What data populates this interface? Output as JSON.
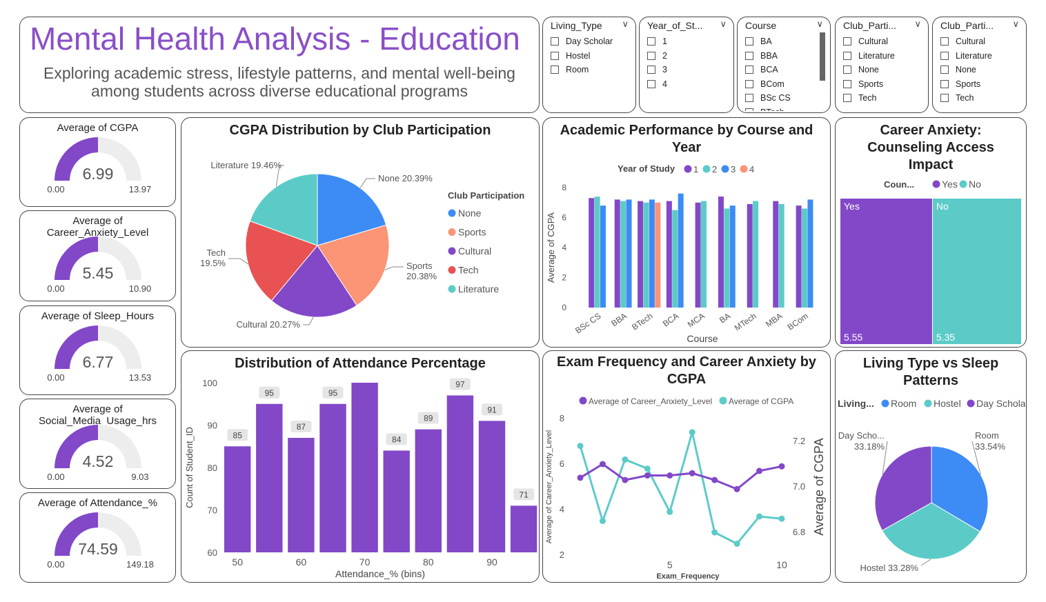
{
  "header": {
    "title": "Mental Health Analysis - Education",
    "subtitle_line1": "Exploring academic stress, lifestyle patterns, and mental well-being",
    "subtitle_line2": "among students across diverse educational programs"
  },
  "slicers": [
    {
      "label": "Living_Type",
      "items": [
        "Day Scholar",
        "Hostel",
        "Room"
      ]
    },
    {
      "label": "Year_of_St...",
      "items": [
        "1",
        "2",
        "3",
        "4"
      ]
    },
    {
      "label": "Course",
      "items": [
        "BA",
        "BBA",
        "BCA",
        "BCom",
        "BSc CS",
        "BTech"
      ]
    },
    {
      "label": "Club_Parti...",
      "items": [
        "Cultural",
        "Literature",
        "None",
        "Sports",
        "Tech"
      ]
    },
    {
      "label": "Club_Parti...",
      "items": [
        "Cultural",
        "Literature",
        "None",
        "Sports",
        "Tech"
      ]
    }
  ],
  "kpis": [
    {
      "title_lines": [
        "Average of CGPA"
      ],
      "value": "6.99",
      "min": "0.00",
      "max": "13.97",
      "fraction": 0.5
    },
    {
      "title_lines": [
        "Average of",
        "Career_Anxiety_Level"
      ],
      "value": "5.45",
      "min": "0.00",
      "max": "10.90",
      "fraction": 0.5
    },
    {
      "title_lines": [
        "Average of Sleep_Hours"
      ],
      "value": "6.77",
      "min": "0.00",
      "max": "13.53",
      "fraction": 0.5
    },
    {
      "title_lines": [
        "Average of",
        "Social_Media_Usage_hrs"
      ],
      "value": "4.52",
      "min": "0.00",
      "max": "9.03",
      "fraction": 0.5
    },
    {
      "title_lines": [
        "Average of Attendance_%"
      ],
      "value": "74.59",
      "min": "0.00",
      "max": "149.18",
      "fraction": 0.5
    }
  ],
  "colors": {
    "purple": "#8248c8",
    "teal": "#5ccbc8",
    "blue": "#3d8bf5",
    "salmon": "#fc9476",
    "red": "#e85252",
    "gauge_bg": "#ededed"
  },
  "chart_data": [
    {
      "type": "pie",
      "title": "CGPA Distribution by Club Participation",
      "legend_title": "Club Participation",
      "slices": [
        {
          "name": "None",
          "value": 20.39,
          "label": "None 20.39%",
          "color": "#3d8bf5"
        },
        {
          "name": "Sports",
          "value": 20.38,
          "label": "Sports 20.38%",
          "color": "#fc9476"
        },
        {
          "name": "Cultural",
          "value": 20.27,
          "label": "Cultural 20.27%",
          "color": "#8248c8"
        },
        {
          "name": "Tech",
          "value": 19.5,
          "label": "Tech 19.5%",
          "color": "#e85252"
        },
        {
          "name": "Literature",
          "value": 19.46,
          "label": "Literature 19.46%",
          "color": "#5ccbc8"
        }
      ]
    },
    {
      "type": "bar",
      "title": "Academic Performance by Course and Year",
      "legend_title": "Year of Study",
      "xlabel": "Course",
      "ylabel": "Average of CGPA",
      "ylim": [
        0,
        8
      ],
      "yticks": [
        0,
        2,
        4,
        6,
        8
      ],
      "categories": [
        "BSc CS",
        "BBA",
        "BTech",
        "BCA",
        "MCA",
        "BA",
        "MTech",
        "MBA",
        "BCom"
      ],
      "series": [
        {
          "name": "1",
          "color": "#8248c8",
          "values": [
            7.3,
            7.2,
            7.1,
            7.1,
            7.0,
            7.4,
            6.9,
            7.1,
            6.8
          ]
        },
        {
          "name": "2",
          "color": "#5ccbc8",
          "values": [
            7.4,
            7.1,
            7.0,
            6.5,
            7.1,
            6.6,
            7.1,
            6.9,
            6.6
          ]
        },
        {
          "name": "3",
          "color": "#3d8bf5",
          "values": [
            6.8,
            7.2,
            7.2,
            7.6,
            null,
            6.8,
            null,
            null,
            7.2
          ]
        },
        {
          "name": "4",
          "color": "#fc9476",
          "values": [
            null,
            null,
            7.0,
            null,
            null,
            null,
            null,
            null,
            null
          ]
        }
      ]
    },
    {
      "type": "bar",
      "title": "Career Anxiety: Counseling Access Impact",
      "legend_title": "Coun...",
      "categories": [
        "Yes",
        "No"
      ],
      "values": [
        5.55,
        5.35
      ],
      "value_labels": [
        "5.55",
        "5.35"
      ],
      "colors": [
        "#8248c8",
        "#5ccbc8"
      ]
    },
    {
      "type": "bar",
      "title": "Distribution of Attendance Percentage",
      "xlabel": "Attendance_% (bins)",
      "ylabel": "Count of Student_ID",
      "ylim": [
        60,
        100
      ],
      "yticks": [
        60,
        70,
        80,
        90,
        100
      ],
      "x": [
        50,
        55,
        60,
        65,
        70,
        75,
        80,
        85,
        90,
        95
      ],
      "xticks": [
        50,
        60,
        70,
        80,
        90
      ],
      "values": [
        85,
        95,
        87,
        95,
        100,
        84,
        89,
        97,
        91,
        71
      ],
      "value_labels": [
        "85",
        "95",
        "87",
        "95",
        "",
        "84",
        "89",
        "97",
        "91",
        "71"
      ],
      "color": "#8248c8"
    },
    {
      "type": "line",
      "title": "Exam Frequency and Career Anxiety by CGPA",
      "xlabel": "Exam_Frequency",
      "ylabel": "Average of Career_Anxiety_Level",
      "y2label": "Average of CGPA",
      "x": [
        1,
        2,
        3,
        4,
        5,
        6,
        7,
        8,
        9,
        10
      ],
      "xticks": [
        5,
        10
      ],
      "ylim": [
        2,
        8
      ],
      "yticks": [
        2,
        4,
        6,
        8
      ],
      "y2lim": [
        6.7,
        7.3
      ],
      "y2ticks": [
        "6.8",
        "7.0",
        "7.2"
      ],
      "series": [
        {
          "name": "Average of Career_Anxiety_Level",
          "axis": "left",
          "color": "#8248c8",
          "values": [
            5.4,
            6.0,
            5.3,
            5.5,
            5.5,
            5.6,
            5.3,
            4.9,
            5.7,
            5.9
          ]
        },
        {
          "name": "Average of CGPA",
          "axis": "right",
          "color": "#5ccbc8",
          "values": [
            7.18,
            6.85,
            7.12,
            7.08,
            6.89,
            7.24,
            6.8,
            6.75,
            6.87,
            6.86
          ]
        }
      ]
    },
    {
      "type": "pie",
      "title": "Living Type vs Sleep Patterns",
      "legend_title": "Living...",
      "slices": [
        {
          "name": "Room",
          "value": 33.54,
          "label_lines": [
            "Room",
            "33.54%"
          ],
          "color": "#3d8bf5"
        },
        {
          "name": "Hostel",
          "value": 33.28,
          "label_lines": [
            "Hostel 33.28%"
          ],
          "color": "#5ccbc8"
        },
        {
          "name": "Day Scholar",
          "value": 33.18,
          "label_lines": [
            "Day Scho...",
            "33.18%"
          ],
          "color": "#8248c8"
        }
      ]
    }
  ]
}
